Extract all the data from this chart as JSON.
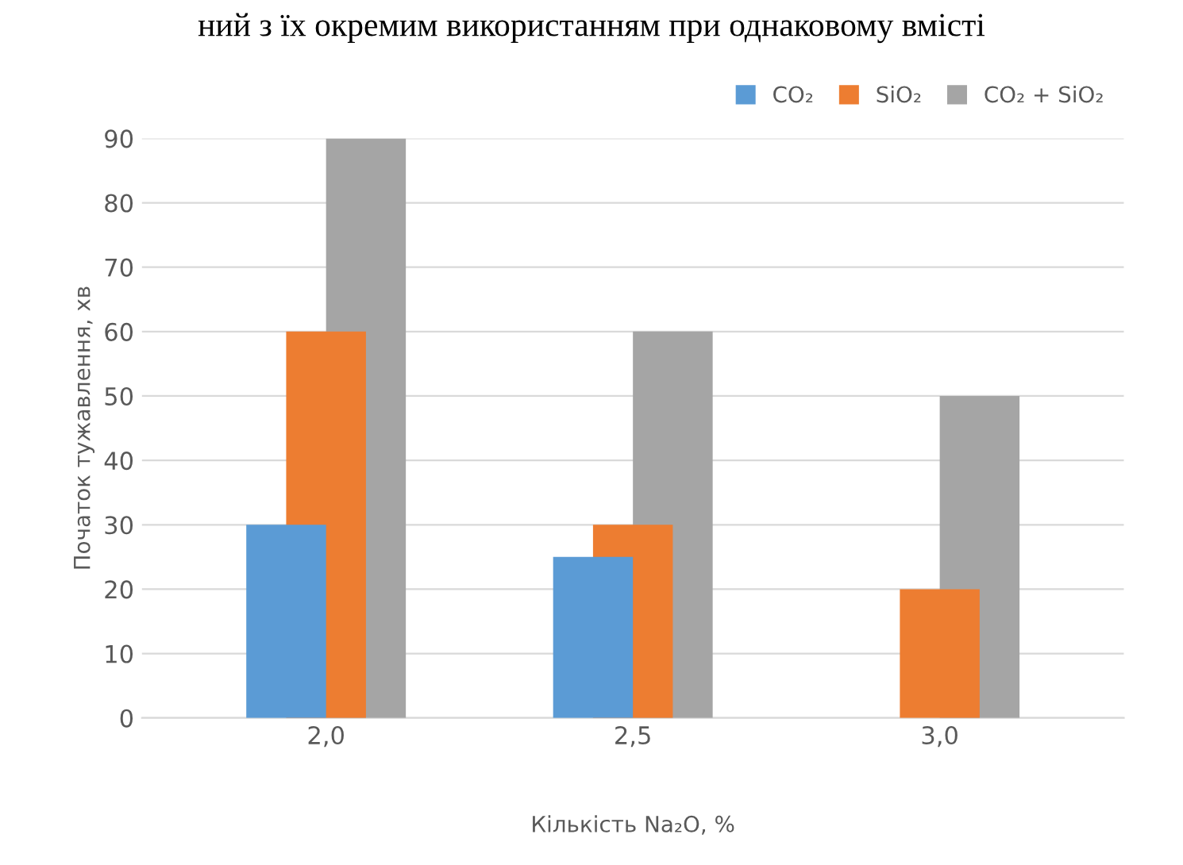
{
  "chart_data": {
    "type": "bar",
    "categories": [
      "2,0",
      "2,5",
      "3,0"
    ],
    "series": [
      {
        "name": "CO₂",
        "color": "#5b9bd5",
        "values": [
          30,
          25,
          null
        ]
      },
      {
        "name": "SiO₂",
        "color": "#ed7d31",
        "values": [
          60,
          30,
          20
        ]
      },
      {
        "name": "CO₂ + SiO₂",
        "color": "#a5a5a5",
        "values": [
          90,
          60,
          50
        ]
      }
    ],
    "xlabel": "Кількість Na₂O, %",
    "ylabel": "Початок тужавлення, хв",
    "ylim": [
      0,
      90
    ],
    "yticks": [
      0,
      10,
      20,
      30,
      40,
      50,
      60,
      70,
      80,
      90
    ],
    "grid": "y",
    "legend": "top right",
    "annotations": [
      "ний з їх окремим використанням при однаковому вмісті"
    ]
  }
}
